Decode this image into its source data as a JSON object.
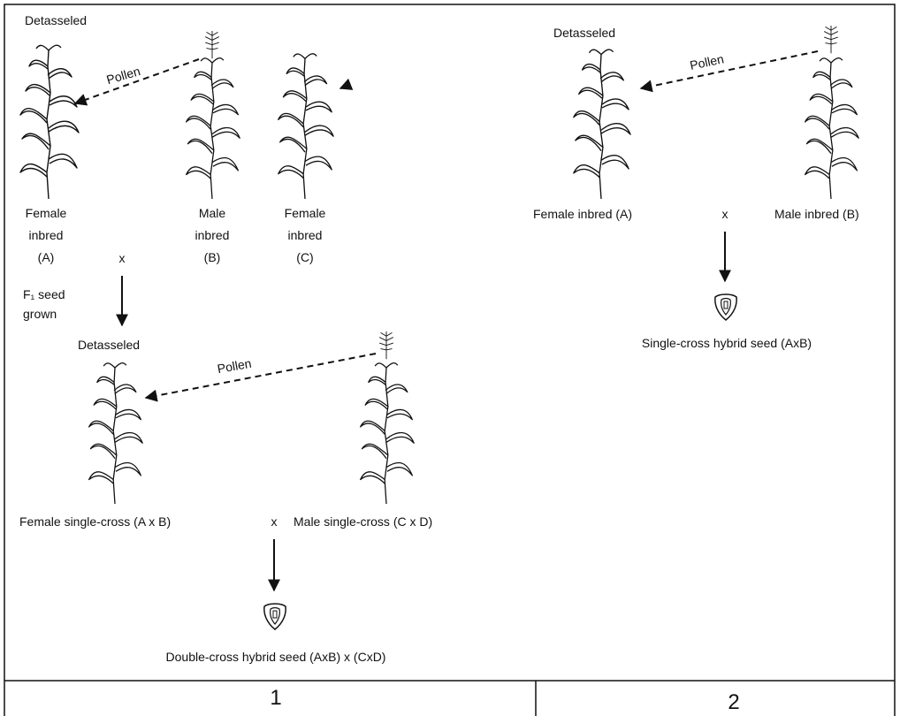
{
  "panel_1": {
    "number": "1",
    "top_cross": {
      "detasseled": "Detasseled",
      "pollen": "Pollen",
      "plants": [
        {
          "lines": [
            "Female",
            "inbred",
            "(A)"
          ]
        },
        {
          "lines": [
            "Male",
            "inbred",
            "(B)"
          ]
        },
        {
          "lines": [
            "Female",
            "inbred",
            "(C)"
          ]
        }
      ],
      "cross_symbol": "x",
      "f1_note": [
        "F₁ seed",
        "grown"
      ]
    },
    "bottom_cross": {
      "detasseled": "Detasseled",
      "pollen": "Pollen",
      "female": "Female single-cross (A x B)",
      "cross_symbol": "x",
      "male": "Male single-cross (C x D)",
      "result": "Double-cross hybrid seed (AxB) x (CxD)"
    }
  },
  "panel_2": {
    "number": "2",
    "detasseled": "Detasseled",
    "pollen": "Pollen",
    "female": "Female inbred (A)",
    "cross_symbol": "x",
    "male": "Male inbred (B)",
    "result": "Single-cross hybrid seed (AxB)"
  }
}
